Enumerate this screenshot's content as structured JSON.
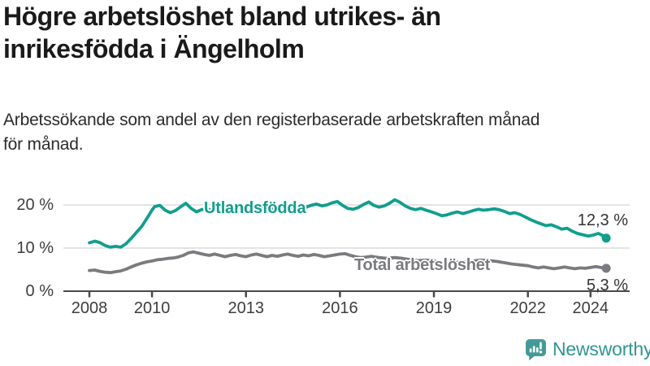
{
  "header": {
    "title_lines": [
      "Högre arbetslöshet bland utrikes- än",
      "inrikesfödda i Ängelholm"
    ],
    "subtitle_lines": [
      "Arbetssökande som andel av den registerbaserade arbetskraften månad",
      "för månad."
    ]
  },
  "chart_data": {
    "type": "line",
    "title": "Högre arbetslöshet bland utrikes- än inrikesfödda i Ängelholm",
    "subtitle": "Arbetssökande som andel av den registerbaserade arbetskraften månad för månad.",
    "unit": "%",
    "xlabel": "",
    "ylabel": "",
    "ylim": [
      0,
      22
    ],
    "xlim": [
      2007.2,
      2025.3
    ],
    "grid": "horizontal",
    "legend": "inline-labels",
    "y_ticks": [
      {
        "value": 0,
        "label": "0 %"
      },
      {
        "value": 10,
        "label": "10 %"
      },
      {
        "value": 20,
        "label": "20 %"
      }
    ],
    "x_ticks": [
      {
        "value": 2008,
        "label": "2008"
      },
      {
        "value": 2010,
        "label": "2010"
      },
      {
        "value": 2013,
        "label": "2013"
      },
      {
        "value": 2016,
        "label": "2016"
      },
      {
        "value": 2019,
        "label": "2019"
      },
      {
        "value": 2022,
        "label": "2022"
      },
      {
        "value": 2024,
        "label": "2024"
      }
    ],
    "series": [
      {
        "name": "Utlandsfödda",
        "color": "#119e8d",
        "end_label": "12,3 %",
        "end_value": 12.3,
        "points": [
          [
            2008.0,
            11.2
          ],
          [
            2008.17,
            11.6
          ],
          [
            2008.33,
            11.3
          ],
          [
            2008.5,
            10.6
          ],
          [
            2008.67,
            10.2
          ],
          [
            2008.83,
            10.4
          ],
          [
            2009.0,
            10.2
          ],
          [
            2009.17,
            11.0
          ],
          [
            2009.33,
            12.2
          ],
          [
            2009.5,
            13.6
          ],
          [
            2009.67,
            15.0
          ],
          [
            2009.83,
            16.8
          ],
          [
            2010.0,
            18.8
          ],
          [
            2010.08,
            19.6
          ],
          [
            2010.25,
            19.9
          ],
          [
            2010.42,
            18.8
          ],
          [
            2010.58,
            18.2
          ],
          [
            2010.75,
            18.7
          ],
          [
            2010.92,
            19.6
          ],
          [
            2011.08,
            20.4
          ],
          [
            2011.25,
            19.2
          ],
          [
            2011.42,
            18.4
          ],
          [
            2011.58,
            18.9
          ],
          [
            2011.75,
            19.1
          ],
          [
            2011.92,
            18.8
          ],
          [
            2012.08,
            19.3
          ],
          [
            2012.25,
            19.9
          ],
          [
            2012.42,
            19.5
          ],
          [
            2012.58,
            19.1
          ],
          [
            2012.75,
            19.4
          ],
          [
            2012.92,
            19.2
          ],
          [
            2013.08,
            19.6
          ],
          [
            2013.25,
            19.9
          ],
          [
            2013.42,
            19.5
          ],
          [
            2013.58,
            19.1
          ],
          [
            2013.75,
            19.3
          ],
          [
            2013.92,
            19.0
          ],
          [
            2014.08,
            19.4
          ],
          [
            2014.25,
            19.7
          ],
          [
            2014.42,
            19.2
          ],
          [
            2014.58,
            18.9
          ],
          [
            2014.75,
            19.2
          ],
          [
            2014.92,
            19.5
          ],
          [
            2015.08,
            19.9
          ],
          [
            2015.25,
            20.2
          ],
          [
            2015.42,
            19.8
          ],
          [
            2015.58,
            20.0
          ],
          [
            2015.75,
            20.5
          ],
          [
            2015.92,
            20.8
          ],
          [
            2016.08,
            19.9
          ],
          [
            2016.25,
            19.2
          ],
          [
            2016.42,
            19.0
          ],
          [
            2016.58,
            19.4
          ],
          [
            2016.75,
            20.1
          ],
          [
            2016.92,
            20.7
          ],
          [
            2017.08,
            19.9
          ],
          [
            2017.25,
            19.5
          ],
          [
            2017.42,
            19.8
          ],
          [
            2017.58,
            20.4
          ],
          [
            2017.75,
            21.2
          ],
          [
            2017.92,
            20.6
          ],
          [
            2018.08,
            19.8
          ],
          [
            2018.25,
            19.2
          ],
          [
            2018.42,
            18.9
          ],
          [
            2018.58,
            19.2
          ],
          [
            2018.75,
            18.8
          ],
          [
            2018.92,
            18.4
          ],
          [
            2019.08,
            18.0
          ],
          [
            2019.25,
            17.5
          ],
          [
            2019.42,
            17.7
          ],
          [
            2019.58,
            18.1
          ],
          [
            2019.75,
            18.4
          ],
          [
            2019.92,
            18.0
          ],
          [
            2020.08,
            18.3
          ],
          [
            2020.25,
            18.7
          ],
          [
            2020.42,
            19.0
          ],
          [
            2020.58,
            18.8
          ],
          [
            2020.75,
            18.9
          ],
          [
            2020.92,
            19.1
          ],
          [
            2021.08,
            18.9
          ],
          [
            2021.25,
            18.5
          ],
          [
            2021.42,
            18.0
          ],
          [
            2021.58,
            18.2
          ],
          [
            2021.75,
            17.8
          ],
          [
            2021.92,
            17.2
          ],
          [
            2022.08,
            16.6
          ],
          [
            2022.25,
            16.1
          ],
          [
            2022.42,
            15.6
          ],
          [
            2022.58,
            15.2
          ],
          [
            2022.75,
            15.4
          ],
          [
            2022.92,
            14.9
          ],
          [
            2023.08,
            14.4
          ],
          [
            2023.25,
            14.6
          ],
          [
            2023.42,
            13.9
          ],
          [
            2023.58,
            13.4
          ],
          [
            2023.75,
            13.1
          ],
          [
            2023.92,
            12.8
          ],
          [
            2024.08,
            13.0
          ],
          [
            2024.25,
            13.4
          ],
          [
            2024.42,
            12.8
          ],
          [
            2024.5,
            12.3
          ]
        ]
      },
      {
        "name": "Total arbetslöshet",
        "color": "#7a7b7f",
        "end_label": "5,3 %",
        "end_value": 5.3,
        "points": [
          [
            2008.0,
            4.8
          ],
          [
            2008.17,
            4.9
          ],
          [
            2008.33,
            4.6
          ],
          [
            2008.5,
            4.4
          ],
          [
            2008.67,
            4.3
          ],
          [
            2008.83,
            4.5
          ],
          [
            2009.0,
            4.7
          ],
          [
            2009.17,
            5.1
          ],
          [
            2009.33,
            5.6
          ],
          [
            2009.5,
            6.1
          ],
          [
            2009.67,
            6.5
          ],
          [
            2009.83,
            6.8
          ],
          [
            2010.0,
            7.0
          ],
          [
            2010.17,
            7.3
          ],
          [
            2010.33,
            7.4
          ],
          [
            2010.5,
            7.6
          ],
          [
            2010.67,
            7.7
          ],
          [
            2010.83,
            7.9
          ],
          [
            2011.0,
            8.3
          ],
          [
            2011.17,
            8.9
          ],
          [
            2011.33,
            9.1
          ],
          [
            2011.5,
            8.8
          ],
          [
            2011.67,
            8.5
          ],
          [
            2011.83,
            8.3
          ],
          [
            2012.0,
            8.6
          ],
          [
            2012.17,
            8.3
          ],
          [
            2012.33,
            8.0
          ],
          [
            2012.5,
            8.3
          ],
          [
            2012.67,
            8.5
          ],
          [
            2012.83,
            8.2
          ],
          [
            2013.0,
            8.0
          ],
          [
            2013.17,
            8.4
          ],
          [
            2013.33,
            8.6
          ],
          [
            2013.5,
            8.3
          ],
          [
            2013.67,
            8.0
          ],
          [
            2013.83,
            8.3
          ],
          [
            2014.0,
            8.1
          ],
          [
            2014.17,
            8.4
          ],
          [
            2014.33,
            8.6
          ],
          [
            2014.5,
            8.3
          ],
          [
            2014.67,
            8.1
          ],
          [
            2014.83,
            8.4
          ],
          [
            2015.0,
            8.2
          ],
          [
            2015.17,
            8.5
          ],
          [
            2015.33,
            8.3
          ],
          [
            2015.5,
            8.0
          ],
          [
            2015.67,
            8.2
          ],
          [
            2015.83,
            8.4
          ],
          [
            2016.0,
            8.6
          ],
          [
            2016.17,
            8.7
          ],
          [
            2016.33,
            8.3
          ],
          [
            2016.5,
            8.0
          ],
          [
            2016.67,
            7.8
          ],
          [
            2016.83,
            7.9
          ],
          [
            2017.0,
            8.1
          ],
          [
            2017.25,
            7.8
          ],
          [
            2017.5,
            7.6
          ],
          [
            2017.75,
            7.8
          ],
          [
            2018.0,
            7.6
          ],
          [
            2018.25,
            7.3
          ],
          [
            2018.5,
            7.1
          ],
          [
            2018.75,
            7.2
          ],
          [
            2019.0,
            7.0
          ],
          [
            2019.25,
            6.7
          ],
          [
            2019.5,
            6.5
          ],
          [
            2019.75,
            6.7
          ],
          [
            2020.0,
            6.8
          ],
          [
            2020.25,
            7.0
          ],
          [
            2020.5,
            7.2
          ],
          [
            2020.75,
            7.1
          ],
          [
            2021.0,
            6.9
          ],
          [
            2021.25,
            6.6
          ],
          [
            2021.5,
            6.3
          ],
          [
            2021.75,
            6.1
          ],
          [
            2022.0,
            5.9
          ],
          [
            2022.17,
            5.6
          ],
          [
            2022.33,
            5.4
          ],
          [
            2022.5,
            5.6
          ],
          [
            2022.67,
            5.4
          ],
          [
            2022.83,
            5.2
          ],
          [
            2023.0,
            5.4
          ],
          [
            2023.17,
            5.6
          ],
          [
            2023.33,
            5.4
          ],
          [
            2023.5,
            5.2
          ],
          [
            2023.67,
            5.4
          ],
          [
            2023.83,
            5.3
          ],
          [
            2024.0,
            5.5
          ],
          [
            2024.17,
            5.7
          ],
          [
            2024.33,
            5.5
          ],
          [
            2024.5,
            5.3
          ]
        ]
      }
    ]
  },
  "footer": {
    "brand": "Newsworthy"
  },
  "colors": {
    "background": "#ffffff",
    "title_text": "#1a1a1a",
    "grid": "#dcdcdc",
    "axis": "#4a4a4a",
    "tick_text": "#3d3d3d",
    "value_text": "#333333",
    "series_teal": "#119e8d",
    "series_gray": "#7a7b7f",
    "logo_icon": "#459a98",
    "logo_text": "#2f9694"
  }
}
